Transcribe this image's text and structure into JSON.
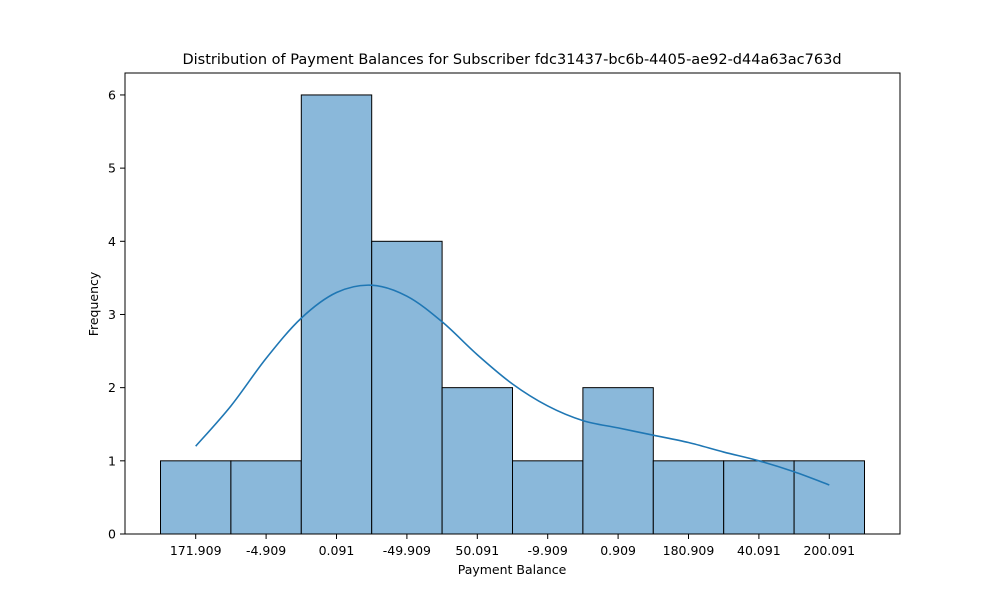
{
  "chart_data": {
    "type": "bar",
    "title": "Distribution of Payment Balances for Subscriber fdc31437-bc6b-4405-ae92-d44a63ac763d",
    "xlabel": "Payment Balance",
    "ylabel": "Frequency",
    "categories": [
      "171.909",
      "-4.909",
      "0.091",
      "-49.909",
      "50.091",
      "-9.909",
      "0.909",
      "180.909",
      "40.091",
      "200.091"
    ],
    "values": [
      1,
      1,
      6,
      4,
      2,
      1,
      2,
      1,
      1,
      1
    ],
    "y_ticks": [
      0,
      1,
      2,
      3,
      4,
      5,
      6
    ],
    "ylim": [
      0,
      6.3
    ],
    "kde_curve": {
      "x_index": [
        0,
        0.5,
        1,
        1.5,
        2,
        2.5,
        3,
        3.5,
        4,
        4.5,
        5,
        5.5,
        6,
        6.5,
        7,
        7.5,
        8,
        8.5,
        9
      ],
      "y": [
        1.2,
        1.75,
        2.4,
        2.95,
        3.3,
        3.4,
        3.25,
        2.9,
        2.45,
        2.05,
        1.75,
        1.55,
        1.45,
        1.35,
        1.25,
        1.12,
        1.0,
        0.85,
        0.67
      ]
    },
    "bar_color": "#8ab8da",
    "line_color": "#1f77b4",
    "grid": false,
    "legend": "none"
  }
}
